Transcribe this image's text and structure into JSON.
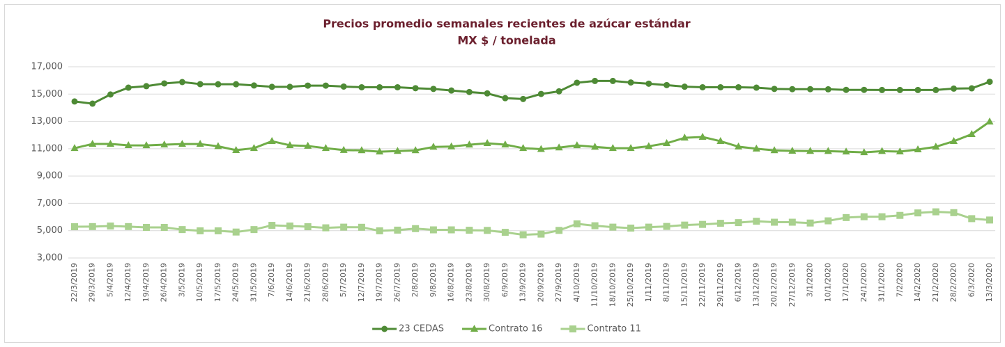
{
  "chart_data": {
    "type": "line",
    "title": "Precios promedio semanales recientes de azúcar estándar",
    "subtitle": "MX $ / tonelada",
    "categories": [
      "22/3/2019",
      "29/3/2019",
      "5/4/2019",
      "12/4/2019",
      "19/4/2019",
      "26/4/2019",
      "3/5/2019",
      "10/5/2019",
      "17/5/2019",
      "24/5/2019",
      "31/5/2019",
      "7/6/2019",
      "14/6/2019",
      "21/6/2019",
      "28/6/2019",
      "5/7/2019",
      "12/7/2019",
      "19/7/2019",
      "26/7/2019",
      "2/8/2019",
      "9/8/2019",
      "16/8/2019",
      "23/8/2019",
      "30/8/2019",
      "6/9/2019",
      "13/9/2019",
      "20/9/2019",
      "27/9/2019",
      "4/10/2019",
      "11/10/2019",
      "18/10/2019",
      "25/10/2019",
      "1/11/2019",
      "8/11/2019",
      "15/11/2019",
      "22/11/2019",
      "29/11/2019",
      "6/12/2019",
      "13/12/2019",
      "20/12/2019",
      "27/12/2019",
      "3/1/2020",
      "10/1/2020",
      "17/1/2020",
      "24/1/2020",
      "31/1/2020",
      "7/2/2020",
      "14/2/2020",
      "21/2/2020",
      "28/2/2020",
      "6/3/2020",
      "13/3/2020"
    ],
    "series": [
      {
        "name": "23 CEDAS",
        "color": "#4e8a35",
        "marker": "circle",
        "values": [
          14460,
          14300,
          14970,
          15470,
          15580,
          15780,
          15880,
          15730,
          15720,
          15720,
          15630,
          15530,
          15530,
          15620,
          15620,
          15550,
          15500,
          15500,
          15500,
          15430,
          15380,
          15260,
          15150,
          15050,
          14700,
          14640,
          15010,
          15200,
          15830,
          15960,
          15960,
          15850,
          15760,
          15660,
          15540,
          15500,
          15500,
          15500,
          15470,
          15380,
          15360,
          15360,
          15350,
          15310,
          15310,
          15300,
          15300,
          15300,
          15300,
          15400,
          15420,
          15900
        ]
      },
      {
        "name": "Contrato 16",
        "color": "#70ad47",
        "marker": "triangle",
        "values": [
          11040,
          11350,
          11350,
          11250,
          11240,
          11300,
          11340,
          11340,
          11180,
          10890,
          11040,
          11550,
          11250,
          11200,
          11040,
          10900,
          10880,
          10780,
          10830,
          10880,
          11130,
          11160,
          11290,
          11400,
          11300,
          11040,
          10970,
          11080,
          11240,
          11130,
          11040,
          11040,
          11180,
          11400,
          11800,
          11860,
          11550,
          11150,
          11000,
          10880,
          10840,
          10830,
          10820,
          10780,
          10730,
          10820,
          10790,
          10940,
          11140,
          11550,
          12060,
          12980
        ]
      },
      {
        "name": "Contrato 11",
        "color": "#a9d18e",
        "marker": "square",
        "values": [
          5290,
          5300,
          5340,
          5300,
          5240,
          5240,
          5080,
          4990,
          4990,
          4900,
          5080,
          5390,
          5340,
          5290,
          5210,
          5260,
          5250,
          4990,
          5040,
          5150,
          5060,
          5060,
          5030,
          5020,
          4880,
          4700,
          4750,
          5020,
          5500,
          5360,
          5260,
          5190,
          5260,
          5310,
          5410,
          5460,
          5540,
          5590,
          5690,
          5620,
          5620,
          5560,
          5720,
          5960,
          6020,
          6020,
          6120,
          6300,
          6380,
          6320,
          5880,
          5780
        ]
      }
    ],
    "ylim": [
      3000,
      17000
    ],
    "yticks": [
      {
        "value": 3000,
        "label": "3,000"
      },
      {
        "value": 5000,
        "label": "5,000"
      },
      {
        "value": 7000,
        "label": "7,000"
      },
      {
        "value": 9000,
        "label": "9,000"
      },
      {
        "value": 11000,
        "label": "11,000"
      },
      {
        "value": 13000,
        "label": "13,000"
      },
      {
        "value": 15000,
        "label": "15,000"
      },
      {
        "value": 17000,
        "label": "17,000"
      }
    ],
    "grid": true,
    "legend": "bottom"
  }
}
